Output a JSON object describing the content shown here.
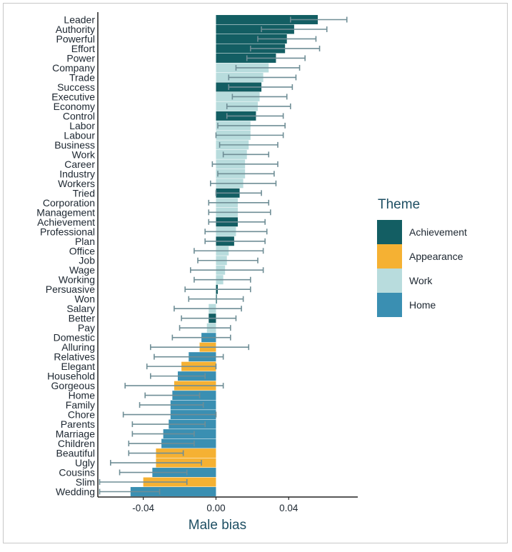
{
  "chart_data": {
    "type": "bar",
    "orientation": "horizontal",
    "title": "",
    "xlabel": "Male bias",
    "ylabel": "",
    "xlim": [
      -0.065,
      0.078
    ],
    "xticks": [
      -0.04,
      0.0,
      0.04
    ],
    "xtick_labels": [
      "-0.04",
      "0.00",
      "0.04"
    ],
    "grid": false,
    "legend": {
      "title": "Theme",
      "position": "right",
      "entries": [
        {
          "name": "Achievement",
          "color": "#135e63"
        },
        {
          "name": "Appearance",
          "color": "#f5b133"
        },
        {
          "name": "Work",
          "color": "#b8dcdd"
        },
        {
          "name": "Home",
          "color": "#3a8fb2"
        }
      ]
    },
    "colors": {
      "Achievement": "#135e63",
      "Appearance": "#f5b133",
      "Work": "#b8dcdd",
      "Home": "#3a8fb2",
      "errorbar": "#6f8e96",
      "axis": "#222222"
    },
    "bars": [
      {
        "label": "Leader",
        "theme": "Achievement",
        "value": 0.056,
        "lo": 0.041,
        "hi": 0.072
      },
      {
        "label": "Authority",
        "theme": "Achievement",
        "value": 0.043,
        "lo": 0.025,
        "hi": 0.061
      },
      {
        "label": "Powerful",
        "theme": "Achievement",
        "value": 0.039,
        "lo": 0.023,
        "hi": 0.055
      },
      {
        "label": "Effort",
        "theme": "Achievement",
        "value": 0.038,
        "lo": 0.019,
        "hi": 0.057
      },
      {
        "label": "Power",
        "theme": "Achievement",
        "value": 0.033,
        "lo": 0.017,
        "hi": 0.049
      },
      {
        "label": "Company",
        "theme": "Work",
        "value": 0.029,
        "lo": 0.011,
        "hi": 0.046
      },
      {
        "label": "Trade",
        "theme": "Work",
        "value": 0.026,
        "lo": 0.007,
        "hi": 0.044
      },
      {
        "label": "Success",
        "theme": "Achievement",
        "value": 0.025,
        "lo": 0.007,
        "hi": 0.042
      },
      {
        "label": "Executive",
        "theme": "Work",
        "value": 0.024,
        "lo": 0.009,
        "hi": 0.039
      },
      {
        "label": "Economy",
        "theme": "Work",
        "value": 0.023,
        "lo": 0.006,
        "hi": 0.041
      },
      {
        "label": "Control",
        "theme": "Achievement",
        "value": 0.022,
        "lo": 0.006,
        "hi": 0.037
      },
      {
        "label": "Labor",
        "theme": "Work",
        "value": 0.019,
        "lo": 0.001,
        "hi": 0.038
      },
      {
        "label": "Labour",
        "theme": "Work",
        "value": 0.019,
        "lo": 0.0,
        "hi": 0.037
      },
      {
        "label": "Business",
        "theme": "Work",
        "value": 0.018,
        "lo": 0.002,
        "hi": 0.034
      },
      {
        "label": "Work",
        "theme": "Work",
        "value": 0.017,
        "lo": 0.004,
        "hi": 0.029
      },
      {
        "label": "Career",
        "theme": "Work",
        "value": 0.016,
        "lo": -0.002,
        "hi": 0.034
      },
      {
        "label": "Industry",
        "theme": "Work",
        "value": 0.016,
        "lo": 0.001,
        "hi": 0.032
      },
      {
        "label": "Workers",
        "theme": "Work",
        "value": 0.015,
        "lo": -0.003,
        "hi": 0.033
      },
      {
        "label": "Tried",
        "theme": "Achievement",
        "value": 0.013,
        "lo": 0.0,
        "hi": 0.025
      },
      {
        "label": "Corporation",
        "theme": "Work",
        "value": 0.012,
        "lo": -0.004,
        "hi": 0.029
      },
      {
        "label": "Management",
        "theme": "Work",
        "value": 0.012,
        "lo": -0.004,
        "hi": 0.03
      },
      {
        "label": "Achievement",
        "theme": "Achievement",
        "value": 0.012,
        "lo": -0.004,
        "hi": 0.027
      },
      {
        "label": "Professional",
        "theme": "Work",
        "value": 0.011,
        "lo": -0.006,
        "hi": 0.028
      },
      {
        "label": "Plan",
        "theme": "Achievement",
        "value": 0.01,
        "lo": -0.006,
        "hi": 0.027
      },
      {
        "label": "Office",
        "theme": "Work",
        "value": 0.007,
        "lo": -0.012,
        "hi": 0.026
      },
      {
        "label": "Job",
        "theme": "Work",
        "value": 0.006,
        "lo": -0.01,
        "hi": 0.023
      },
      {
        "label": "Wage",
        "theme": "Work",
        "value": 0.005,
        "lo": -0.014,
        "hi": 0.026
      },
      {
        "label": "Working",
        "theme": "Work",
        "value": 0.004,
        "lo": -0.012,
        "hi": 0.019
      },
      {
        "label": "Persuasive",
        "theme": "Achievement",
        "value": 0.001,
        "lo": -0.017,
        "hi": 0.019
      },
      {
        "label": "Won",
        "theme": "Achievement",
        "value": 0.0,
        "lo": -0.015,
        "hi": 0.015
      },
      {
        "label": "Salary",
        "theme": "Work",
        "value": -0.004,
        "lo": -0.023,
        "hi": 0.014
      },
      {
        "label": "Better",
        "theme": "Achievement",
        "value": -0.004,
        "lo": -0.019,
        "hi": 0.011
      },
      {
        "label": "Pay",
        "theme": "Work",
        "value": -0.005,
        "lo": -0.02,
        "hi": 0.008
      },
      {
        "label": "Domestic",
        "theme": "Home",
        "value": -0.008,
        "lo": -0.024,
        "hi": 0.008
      },
      {
        "label": "Alluring",
        "theme": "Appearance",
        "value": -0.009,
        "lo": -0.036,
        "hi": 0.018
      },
      {
        "label": "Relatives",
        "theme": "Home",
        "value": -0.015,
        "lo": -0.034,
        "hi": 0.004
      },
      {
        "label": "Elegant",
        "theme": "Appearance",
        "value": -0.019,
        "lo": -0.038,
        "hi": 0.0
      },
      {
        "label": "Household",
        "theme": "Home",
        "value": -0.021,
        "lo": -0.036,
        "hi": -0.006
      },
      {
        "label": "Gorgeous",
        "theme": "Appearance",
        "value": -0.023,
        "lo": -0.05,
        "hi": 0.004
      },
      {
        "label": "Home",
        "theme": "Home",
        "value": -0.024,
        "lo": -0.039,
        "hi": -0.009
      },
      {
        "label": "Family",
        "theme": "Home",
        "value": -0.025,
        "lo": -0.042,
        "hi": -0.007
      },
      {
        "label": "Chore",
        "theme": "Home",
        "value": -0.025,
        "lo": -0.051,
        "hi": 0.0
      },
      {
        "label": "Parents",
        "theme": "Home",
        "value": -0.026,
        "lo": -0.046,
        "hi": -0.006
      },
      {
        "label": "Marriage",
        "theme": "Home",
        "value": -0.029,
        "lo": -0.046,
        "hi": -0.012
      },
      {
        "label": "Children",
        "theme": "Home",
        "value": -0.03,
        "lo": -0.048,
        "hi": -0.012
      },
      {
        "label": "Beautiful",
        "theme": "Appearance",
        "value": -0.033,
        "lo": -0.048,
        "hi": -0.018
      },
      {
        "label": "Ugly",
        "theme": "Appearance",
        "value": -0.033,
        "lo": -0.058,
        "hi": -0.008
      },
      {
        "label": "Cousins",
        "theme": "Home",
        "value": -0.035,
        "lo": -0.053,
        "hi": -0.016
      },
      {
        "label": "Slim",
        "theme": "Appearance",
        "value": -0.04,
        "lo": -0.064,
        "hi": -0.016
      },
      {
        "label": "Wedding",
        "theme": "Home",
        "value": -0.047,
        "lo": -0.064,
        "hi": -0.031
      }
    ]
  }
}
